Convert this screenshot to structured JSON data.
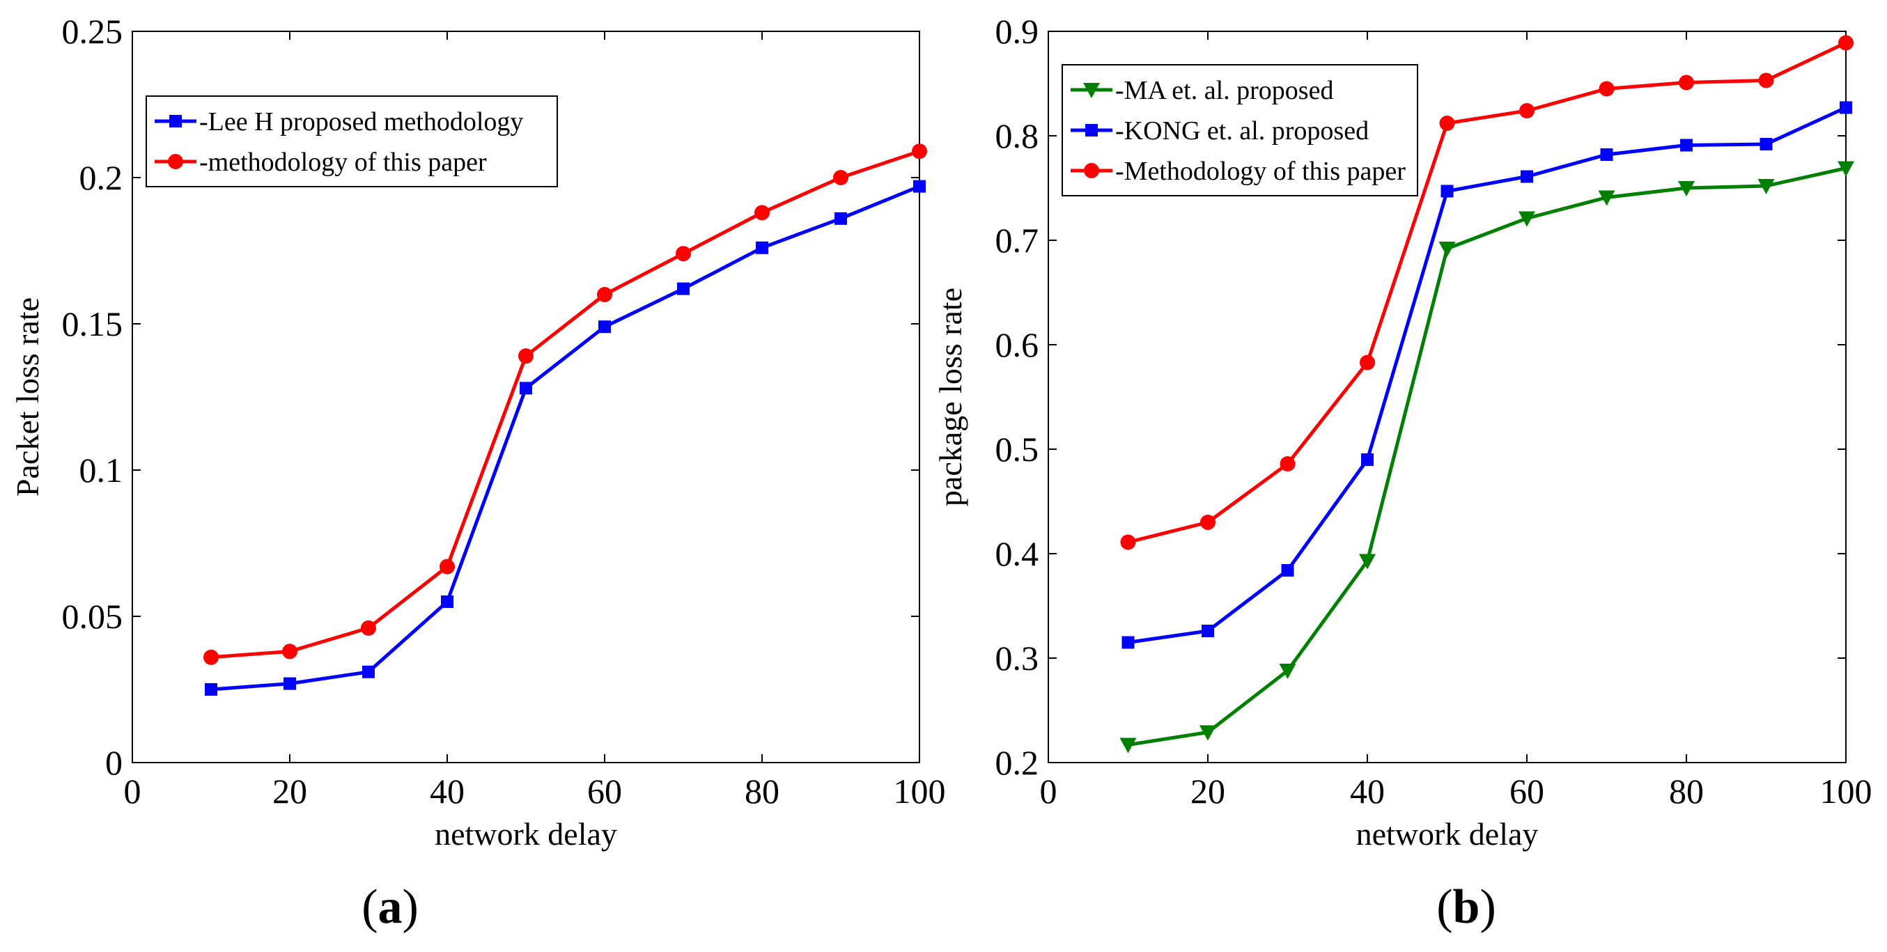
{
  "chart_data": [
    {
      "type": "line",
      "panel_label": "a",
      "xlabel": "network delay",
      "ylabel": "Packet loss rate",
      "xlim": [
        0,
        100
      ],
      "ylim": [
        0,
        0.25
      ],
      "x_ticks": [
        "0",
        "20",
        "40",
        "60",
        "80",
        "100"
      ],
      "y_ticks": [
        "0",
        "0.05",
        "0.1",
        "0.15",
        "0.2",
        "0.25"
      ],
      "x": [
        10,
        20,
        30,
        40,
        50,
        60,
        70,
        80,
        90,
        100
      ],
      "legend_position": "top-left",
      "series": [
        {
          "name": "-Lee H proposed methodology",
          "color": "#0000ff",
          "marker": "square",
          "values": [
            0.025,
            0.027,
            0.031,
            0.055,
            0.128,
            0.149,
            0.162,
            0.176,
            0.186,
            0.197
          ]
        },
        {
          "name": "-methodology of this paper",
          "color": "#ff0000",
          "marker": "circle",
          "values": [
            0.036,
            0.038,
            0.046,
            0.067,
            0.139,
            0.16,
            0.174,
            0.188,
            0.2,
            0.209
          ]
        }
      ]
    },
    {
      "type": "line",
      "panel_label": "b",
      "xlabel": "network delay",
      "ylabel": "package loss rate",
      "xlim": [
        0,
        100
      ],
      "ylim": [
        0.2,
        0.9
      ],
      "x_ticks": [
        "0",
        "20",
        "40",
        "60",
        "80",
        "100"
      ],
      "y_ticks": [
        "0.2",
        "0.3",
        "0.4",
        "0.5",
        "0.6",
        "0.7",
        "0.8",
        "0.9"
      ],
      "x": [
        10,
        20,
        30,
        40,
        50,
        60,
        70,
        80,
        90,
        100
      ],
      "legend_position": "top-left",
      "series": [
        {
          "name": "-MA et. al. proposed",
          "color": "#008000",
          "marker": "triangle-down",
          "values": [
            0.217,
            0.229,
            0.288,
            0.393,
            0.692,
            0.721,
            0.741,
            0.75,
            0.752,
            0.769
          ]
        },
        {
          "name": "-KONG et. al. proposed",
          "color": "#0000ff",
          "marker": "square",
          "values": [
            0.315,
            0.326,
            0.384,
            0.49,
            0.747,
            0.761,
            0.782,
            0.791,
            0.792,
            0.827
          ]
        },
        {
          "name": "-Methodology of this paper",
          "color": "#ff0000",
          "marker": "circle",
          "values": [
            0.411,
            0.43,
            0.486,
            0.583,
            0.812,
            0.824,
            0.845,
            0.851,
            0.853,
            0.889
          ]
        }
      ]
    }
  ]
}
